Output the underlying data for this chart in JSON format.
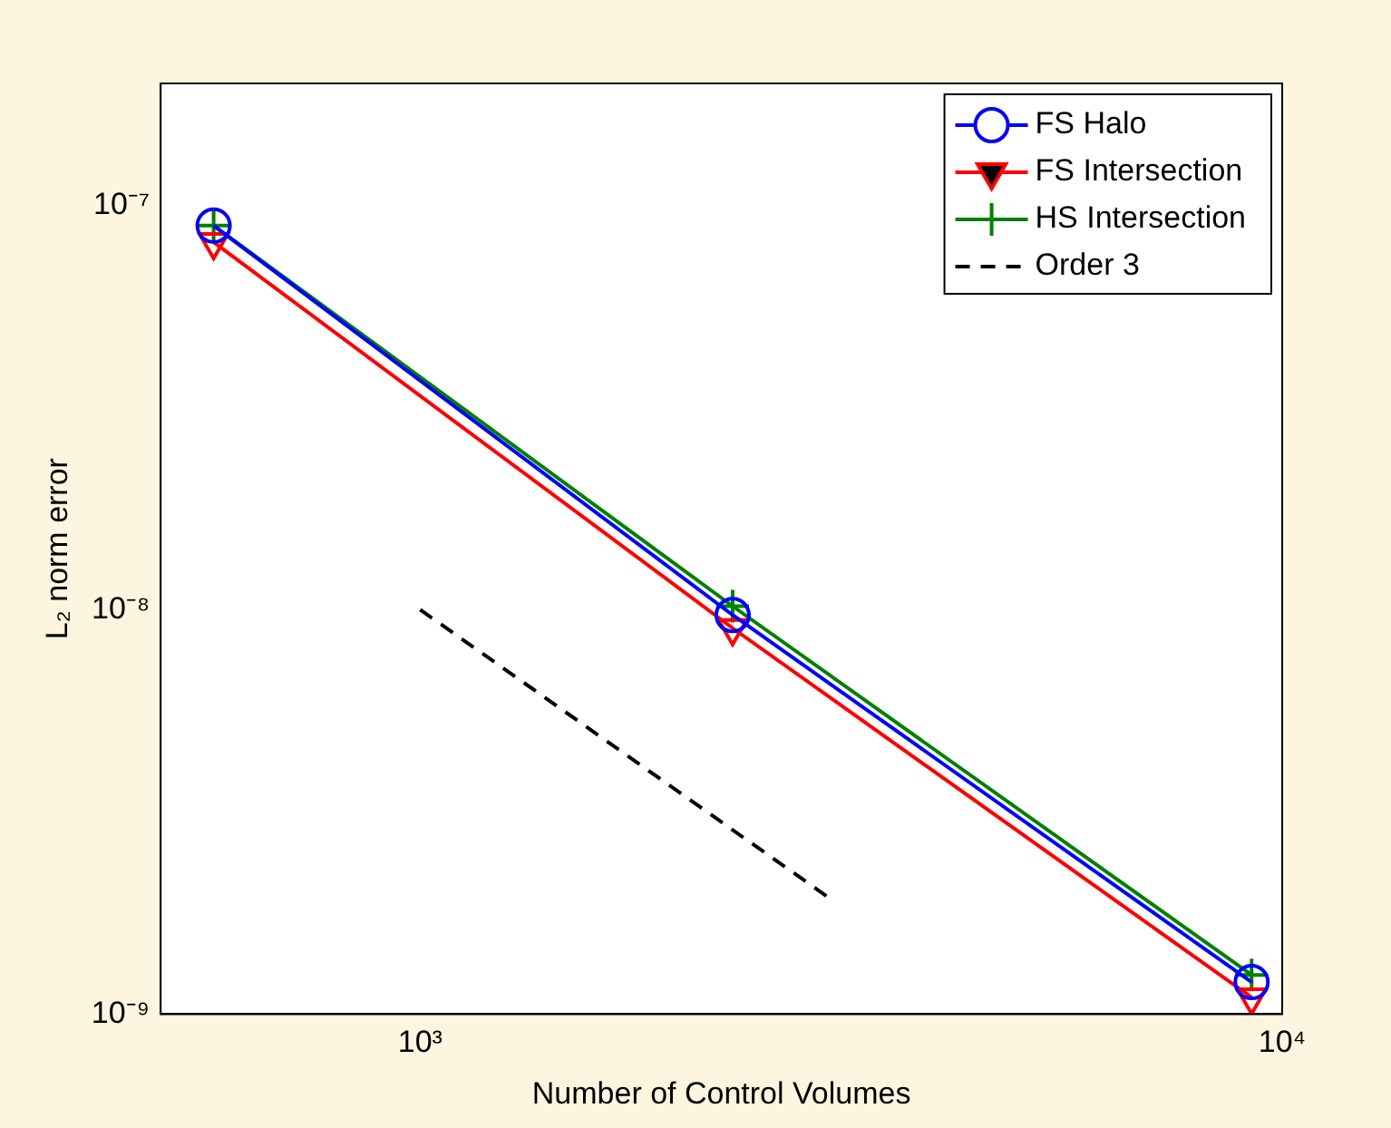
{
  "chart_data": {
    "type": "line",
    "xlabel": "Number of Control Volumes",
    "ylabel": "L₂ norm error",
    "log": "xy",
    "xlim": [
      500,
      10000
    ],
    "ylim": [
      1e-09,
      2e-07
    ],
    "xticks": [
      {
        "value": 1000,
        "label": "10³"
      },
      {
        "value": 10000,
        "label": "10⁴"
      }
    ],
    "yticks": [
      {
        "value": 1e-09,
        "label": "10⁻⁹"
      },
      {
        "value": 1e-08,
        "label": "10⁻⁸"
      },
      {
        "value": 1e-07,
        "label": "10⁻⁷"
      }
    ],
    "grid": false,
    "legend": "top right",
    "series": [
      {
        "name": "FS Halo",
        "color": "#0000ff",
        "marker": "circle",
        "x": [
          576,
          2304,
          9216
        ],
        "values": [
          8.9e-08,
          9.7e-09,
          1.2e-09
        ]
      },
      {
        "name": "FS Intersection",
        "color": "#ff0000",
        "marker": "triangle",
        "x": [
          576,
          2304,
          9216
        ],
        "values": [
          8.1e-08,
          9e-09,
          1.1e-09
        ]
      },
      {
        "name": "HS Intersection",
        "color": "#008000",
        "marker": "cross",
        "x": [
          576,
          2304,
          9216
        ],
        "values": [
          8.9e-08,
          1.02e-08,
          1.25e-09
        ]
      },
      {
        "name": "Order 3",
        "color": "#000000",
        "marker": "none",
        "line_style": "dashed",
        "x": [
          1000,
          3000
        ],
        "values": [
          1e-08,
          1.92e-09
        ]
      }
    ]
  }
}
